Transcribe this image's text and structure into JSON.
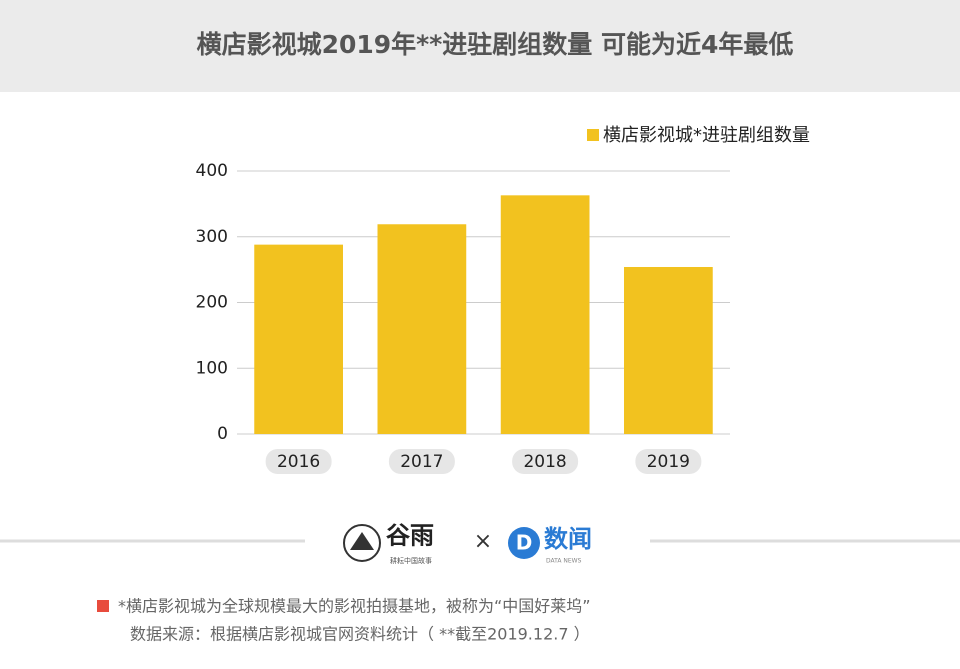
{
  "chart_data": {
    "type": "bar",
    "title": "横店影视城2019年**进驻剧组数量  可能为近4年最低",
    "categories": [
      "2016",
      "2017",
      "2018",
      "2019"
    ],
    "series": [
      {
        "name": "横店影视城*进驻剧组数量",
        "color": "#f2c21f",
        "values": [
          288,
          319,
          363,
          254
        ]
      }
    ],
    "ylim": [
      0,
      400
    ],
    "yticks": [
      0,
      100,
      200,
      300,
      400
    ],
    "grid": true,
    "legend": "top-right"
  },
  "logos": {
    "left": "谷雨",
    "left_sub": "耕耘中国故事",
    "separator": "×",
    "right": "数闻",
    "right_sub": "DATA NEWS"
  },
  "footnote": [
    "*横店影视城为全球规模最大的影视拍摄基地，被称为“中国好莱坞”",
    "数据来源：根据横店影视城官网资料统计（ **截至2019.12.7 ）"
  ]
}
